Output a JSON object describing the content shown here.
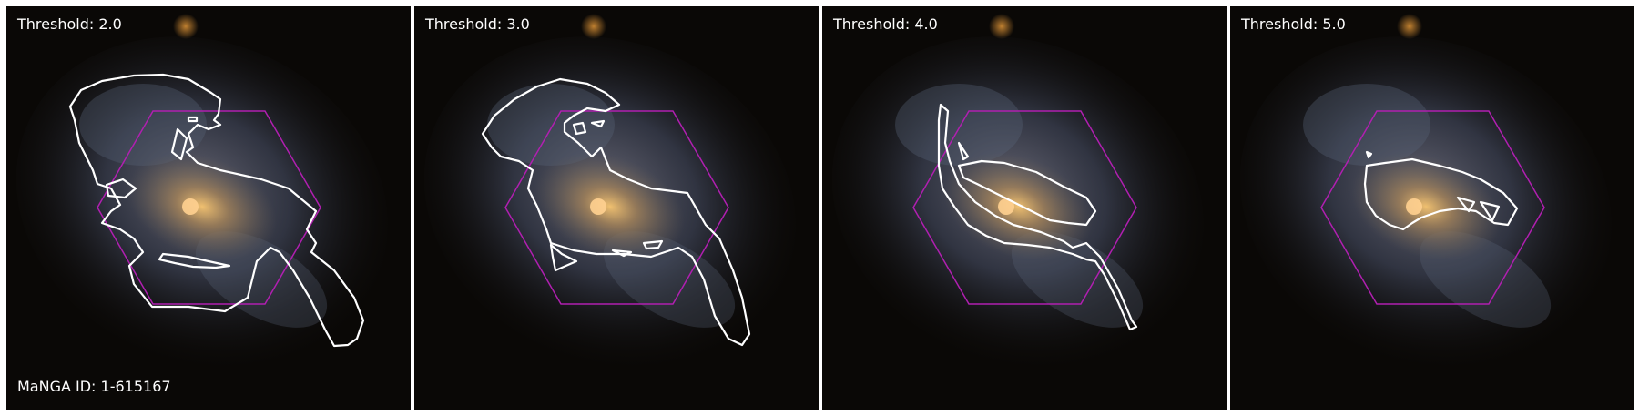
{
  "panels": [
    {
      "label": "Threshold: 2.0"
    },
    {
      "label": "Threshold: 3.0"
    },
    {
      "label": "Threshold: 4.0"
    },
    {
      "label": "Threshold: 5.0"
    }
  ],
  "manga_id_label": "MaNGA ID: 1-615167",
  "colors": {
    "contour": "#ffffff",
    "hexagon": "#b01fb0",
    "background": "#0a0806"
  }
}
